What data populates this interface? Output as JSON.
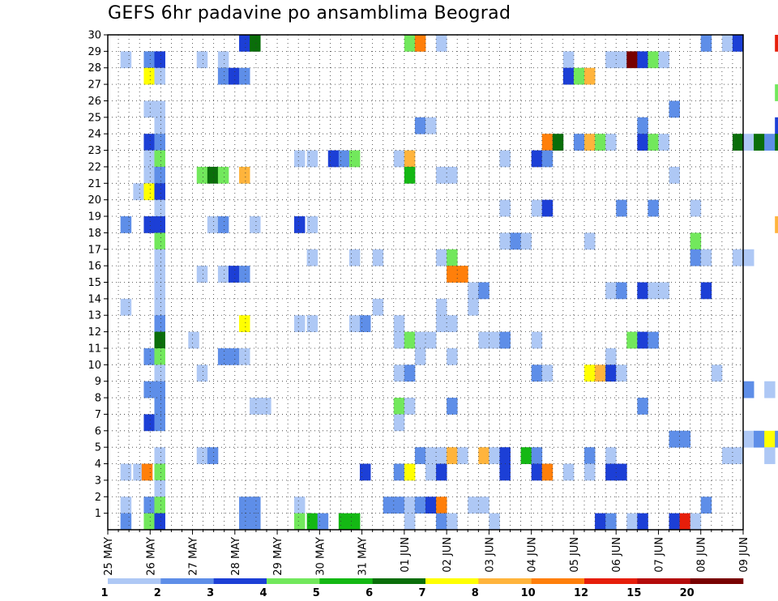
{
  "chart_data": {
    "type": "heatmap",
    "title": "GEFS 6hr padavine po ansamblima Beograd",
    "xlabel": "",
    "ylabel": "",
    "x_tick_labels": [
      "25 MAY",
      "26 MAY",
      "27 MAY",
      "28 MAY",
      "29 MAY",
      "30 MAY",
      "31 MAY",
      "01 JUN",
      "02 JUN",
      "03 JUN",
      "04 JUN",
      "05 JUN",
      "06 JUN",
      "07 JUN",
      "08 JUN",
      "09 JUN"
    ],
    "y_tick_labels": [
      "1",
      "2",
      "3",
      "4",
      "5",
      "6",
      "7",
      "8",
      "9",
      "10",
      "11",
      "12",
      "13",
      "14",
      "15",
      "16",
      "17",
      "18",
      "19",
      "20",
      "21",
      "22",
      "23",
      "24",
      "25",
      "26",
      "27",
      "28",
      "29",
      "30"
    ],
    "grid": true,
    "legend_position": "bottom",
    "colorbar": {
      "labels": [
        "1",
        "2",
        "3",
        "4",
        "5",
        "6",
        "7",
        "8",
        "10",
        "12",
        "15",
        "20"
      ],
      "colors": [
        "#aec8f5",
        "#5e8ee8",
        "#1c3fd6",
        "#72e85c",
        "#14b814",
        "#0a6e0a",
        "#ffff00",
        "#ffb43c",
        "#ff7f0a",
        "#e61e0a",
        "#b40a0a",
        "#780000"
      ]
    },
    "cells": [
      [
        0.3,
        29,
        1
      ],
      [
        0.3,
        19,
        2
      ],
      [
        0.3,
        14,
        1
      ],
      [
        0.3,
        4,
        1
      ],
      [
        0.3,
        2,
        1
      ],
      [
        0.3,
        1,
        2
      ],
      [
        0.6,
        21,
        1
      ],
      [
        0.6,
        4,
        1
      ],
      [
        0.8,
        4,
        9
      ],
      [
        0.85,
        29,
        2
      ],
      [
        0.85,
        28,
        7
      ],
      [
        0.85,
        26,
        1
      ],
      [
        0.85,
        24,
        3
      ],
      [
        0.85,
        23,
        1
      ],
      [
        0.85,
        22,
        1
      ],
      [
        0.85,
        21,
        7
      ],
      [
        0.85,
        19,
        3
      ],
      [
        0.85,
        11,
        2
      ],
      [
        0.85,
        9,
        2
      ],
      [
        0.85,
        7,
        3
      ],
      [
        0.85,
        2,
        2
      ],
      [
        0.85,
        1,
        4
      ],
      [
        1.1,
        29,
        3
      ],
      [
        1.1,
        28,
        1
      ],
      [
        1.1,
        26,
        1
      ],
      [
        1.1,
        25,
        1
      ],
      [
        1.1,
        24,
        2
      ],
      [
        1.1,
        23,
        4
      ],
      [
        1.1,
        22,
        2
      ],
      [
        1.1,
        21,
        3
      ],
      [
        1.1,
        20,
        1
      ],
      [
        1.1,
        19,
        3
      ],
      [
        1.1,
        18,
        4
      ],
      [
        1.1,
        17,
        1
      ],
      [
        1.1,
        16,
        1
      ],
      [
        1.1,
        15,
        1
      ],
      [
        1.1,
        14,
        1
      ],
      [
        1.1,
        13,
        2
      ],
      [
        1.1,
        12,
        6
      ],
      [
        1.1,
        11,
        4
      ],
      [
        1.1,
        10,
        1
      ],
      [
        1.1,
        9,
        2
      ],
      [
        1.1,
        8,
        2
      ],
      [
        1.1,
        7,
        2
      ],
      [
        1.1,
        5,
        1
      ],
      [
        1.1,
        4,
        4
      ],
      [
        1.1,
        3,
        1
      ],
      [
        1.1,
        2,
        4
      ],
      [
        1.1,
        1,
        3
      ],
      [
        1.9,
        12,
        1
      ],
      [
        2.1,
        29,
        1
      ],
      [
        2.1,
        22,
        4
      ],
      [
        2.1,
        16,
        1
      ],
      [
        2.1,
        10,
        1
      ],
      [
        2.1,
        5,
        1
      ],
      [
        2.35,
        22,
        6
      ],
      [
        2.35,
        19,
        1
      ],
      [
        2.35,
        5,
        2
      ],
      [
        2.6,
        29,
        1
      ],
      [
        2.6,
        28,
        2
      ],
      [
        2.6,
        22,
        4
      ],
      [
        2.6,
        19,
        2
      ],
      [
        2.6,
        16,
        1
      ],
      [
        2.6,
        11,
        2
      ],
      [
        2.85,
        28,
        3
      ],
      [
        2.85,
        16,
        3
      ],
      [
        2.85,
        11,
        2
      ],
      [
        3.1,
        30,
        3
      ],
      [
        3.1,
        28,
        2
      ],
      [
        3.1,
        22,
        8
      ],
      [
        3.1,
        16,
        2
      ],
      [
        3.1,
        13,
        7
      ],
      [
        3.1,
        11,
        1
      ],
      [
        3.1,
        2,
        2
      ],
      [
        3.1,
        1,
        2
      ],
      [
        3.35,
        30,
        6
      ],
      [
        3.35,
        2,
        2
      ],
      [
        3.35,
        1,
        2
      ],
      [
        3.35,
        19,
        1
      ],
      [
        3.35,
        8,
        1
      ],
      [
        3.6,
        8,
        1
      ],
      [
        4.4,
        23,
        1
      ],
      [
        4.4,
        19,
        3
      ],
      [
        4.4,
        13,
        1
      ],
      [
        4.4,
        2,
        1
      ],
      [
        4.4,
        1,
        4
      ],
      [
        4.7,
        23,
        1
      ],
      [
        4.7,
        19,
        1
      ],
      [
        4.7,
        17,
        1
      ],
      [
        4.7,
        13,
        1
      ],
      [
        4.7,
        1,
        5
      ],
      [
        4.95,
        1,
        2
      ],
      [
        5.2,
        23,
        3
      ],
      [
        5.45,
        23,
        2
      ],
      [
        5.45,
        1,
        5
      ],
      [
        5.7,
        23,
        4
      ],
      [
        5.7,
        17,
        1
      ],
      [
        5.7,
        13,
        1
      ],
      [
        5.7,
        1,
        5
      ],
      [
        5.95,
        13,
        2
      ],
      [
        5.95,
        4,
        3
      ],
      [
        6.25,
        17,
        1
      ],
      [
        6.25,
        14,
        1
      ],
      [
        6.5,
        2,
        2
      ],
      [
        6.75,
        23,
        1
      ],
      [
        6.75,
        13,
        1
      ],
      [
        6.75,
        12,
        1
      ],
      [
        6.75,
        10,
        1
      ],
      [
        6.75,
        8,
        4
      ],
      [
        6.75,
        7,
        1
      ],
      [
        6.75,
        4,
        2
      ],
      [
        6.75,
        2,
        2
      ],
      [
        7.0,
        30,
        4
      ],
      [
        7.0,
        23,
        8
      ],
      [
        7.0,
        22,
        5
      ],
      [
        7.0,
        12,
        4
      ],
      [
        7.0,
        10,
        2
      ],
      [
        7.0,
        8,
        1
      ],
      [
        7.0,
        4,
        7
      ],
      [
        7.0,
        2,
        14
      ],
      [
        7.0,
        1,
        1
      ],
      [
        7.25,
        30,
        9
      ],
      [
        7.25,
        25,
        2
      ],
      [
        7.25,
        12,
        1
      ],
      [
        7.25,
        11,
        1
      ],
      [
        7.25,
        5,
        2
      ],
      [
        7.25,
        2,
        2
      ],
      [
        7.5,
        25,
        1
      ],
      [
        7.5,
        12,
        1
      ],
      [
        7.5,
        4,
        1
      ],
      [
        7.5,
        5,
        1
      ],
      [
        7.5,
        2,
        3
      ],
      [
        7.75,
        30,
        1
      ],
      [
        7.75,
        22,
        1
      ],
      [
        7.75,
        17,
        1
      ],
      [
        7.75,
        14,
        1
      ],
      [
        7.75,
        13,
        1
      ],
      [
        7.75,
        5,
        1
      ],
      [
        7.75,
        4,
        3
      ],
      [
        7.75,
        2,
        9
      ],
      [
        7.75,
        1,
        2
      ],
      [
        8.0,
        22,
        1
      ],
      [
        8.0,
        17,
        4
      ],
      [
        8.0,
        16,
        9
      ],
      [
        8.0,
        13,
        1
      ],
      [
        8.0,
        11,
        1
      ],
      [
        8.0,
        8,
        2
      ],
      [
        8.0,
        5,
        8
      ],
      [
        8.0,
        1,
        1
      ],
      [
        8.25,
        16,
        9
      ],
      [
        8.25,
        5,
        1
      ],
      [
        8.5,
        15,
        1
      ],
      [
        8.5,
        14,
        1
      ],
      [
        8.5,
        2,
        1
      ],
      [
        8.75,
        15,
        2
      ],
      [
        8.75,
        12,
        1
      ],
      [
        8.75,
        5,
        8
      ],
      [
        8.75,
        2,
        1
      ],
      [
        9.0,
        12,
        1
      ],
      [
        9.0,
        5,
        1
      ],
      [
        9.0,
        1,
        1
      ],
      [
        9.25,
        23,
        1
      ],
      [
        9.25,
        20,
        1
      ],
      [
        9.25,
        18,
        1
      ],
      [
        9.25,
        12,
        2
      ],
      [
        9.25,
        4,
        3
      ],
      [
        9.25,
        5,
        3
      ],
      [
        9.5,
        18,
        2
      ],
      [
        9.75,
        18,
        1
      ],
      [
        9.75,
        5,
        5
      ],
      [
        10.0,
        23,
        3
      ],
      [
        10.0,
        20,
        1
      ],
      [
        10.0,
        12,
        1
      ],
      [
        10.0,
        10,
        2
      ],
      [
        10.0,
        5,
        2
      ],
      [
        10.0,
        4,
        3
      ],
      [
        10.25,
        24,
        9
      ],
      [
        10.25,
        23,
        2
      ],
      [
        10.25,
        20,
        3
      ],
      [
        10.25,
        10,
        1
      ],
      [
        10.25,
        4,
        9
      ],
      [
        10.5,
        24,
        6
      ],
      [
        10.75,
        29,
        1
      ],
      [
        10.75,
        28,
        3
      ],
      [
        10.75,
        4,
        1
      ],
      [
        11.0,
        28,
        4
      ],
      [
        11.0,
        24,
        2
      ],
      [
        11.25,
        28,
        8
      ],
      [
        11.25,
        24,
        8
      ],
      [
        11.25,
        18,
        1
      ],
      [
        11.25,
        10,
        7
      ],
      [
        11.25,
        5,
        2
      ],
      [
        11.25,
        4,
        1
      ],
      [
        11.5,
        24,
        4
      ],
      [
        11.5,
        10,
        8
      ],
      [
        11.5,
        1,
        3
      ],
      [
        11.75,
        29,
        1
      ],
      [
        11.75,
        24,
        1
      ],
      [
        11.75,
        15,
        1
      ],
      [
        11.75,
        11,
        1
      ],
      [
        11.75,
        10,
        3
      ],
      [
        11.75,
        5,
        1
      ],
      [
        11.75,
        4,
        3
      ],
      [
        11.75,
        1,
        2
      ],
      [
        12.0,
        29,
        1
      ],
      [
        12.0,
        20,
        2
      ],
      [
        12.0,
        15,
        2
      ],
      [
        12.0,
        10,
        1
      ],
      [
        12.0,
        4,
        3
      ],
      [
        12.25,
        29,
        12
      ],
      [
        12.25,
        12,
        4
      ],
      [
        12.25,
        1,
        1
      ],
      [
        12.5,
        29,
        3
      ],
      [
        12.5,
        25,
        2
      ],
      [
        12.5,
        24,
        3
      ],
      [
        12.5,
        15,
        3
      ],
      [
        12.5,
        12,
        3
      ],
      [
        12.5,
        8,
        2
      ],
      [
        12.5,
        1,
        3
      ],
      [
        12.75,
        29,
        4
      ],
      [
        12.75,
        24,
        4
      ],
      [
        12.75,
        20,
        2
      ],
      [
        12.75,
        15,
        1
      ],
      [
        12.75,
        12,
        2
      ],
      [
        13.0,
        29,
        1
      ],
      [
        13.0,
        24,
        1
      ],
      [
        13.0,
        15,
        1
      ],
      [
        13.25,
        26,
        2
      ],
      [
        13.25,
        22,
        1
      ],
      [
        13.25,
        6,
        2
      ],
      [
        13.25,
        1,
        3
      ],
      [
        13.5,
        6,
        2
      ],
      [
        13.5,
        1,
        10
      ],
      [
        13.75,
        20,
        1
      ],
      [
        13.75,
        18,
        4
      ],
      [
        13.75,
        17,
        2
      ],
      [
        13.75,
        1,
        1
      ],
      [
        14.0,
        30,
        2
      ],
      [
        14.0,
        17,
        1
      ],
      [
        14.0,
        15,
        3
      ],
      [
        14.0,
        2,
        2
      ],
      [
        14.25,
        10,
        1
      ],
      [
        14.5,
        30,
        1
      ],
      [
        14.5,
        5,
        1
      ],
      [
        14.75,
        30,
        3
      ],
      [
        14.75,
        24,
        6
      ],
      [
        14.75,
        17,
        1
      ],
      [
        14.75,
        5,
        1
      ],
      [
        15.0,
        17,
        1
      ],
      [
        15.0,
        9,
        2
      ],
      [
        15.0,
        6,
        1
      ],
      [
        15.0,
        24,
        1
      ],
      [
        15.25,
        6,
        2
      ],
      [
        15.25,
        24,
        6
      ],
      [
        15.5,
        9,
        1
      ],
      [
        15.5,
        6,
        7
      ],
      [
        15.5,
        5,
        1
      ],
      [
        15.5,
        24,
        2
      ],
      [
        15.75,
        30,
        10
      ],
      [
        15.75,
        25,
        3
      ],
      [
        15.75,
        6,
        2
      ],
      [
        15.75,
        24,
        6
      ],
      [
        15.75,
        19,
        8
      ],
      [
        15.75,
        27,
        4
      ]
    ]
  }
}
